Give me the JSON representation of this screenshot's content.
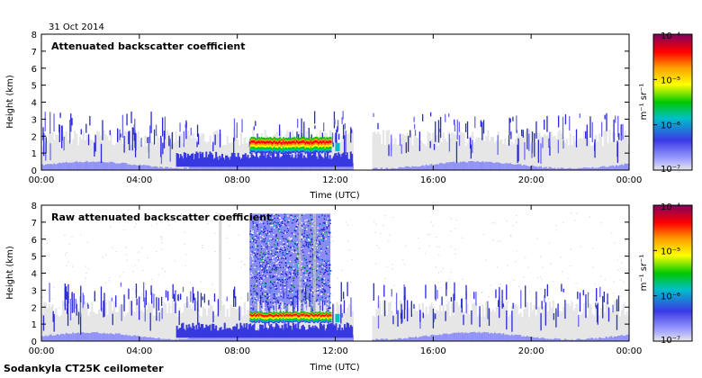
{
  "date": "31 Oct 2014",
  "footer": "Sodankyla CT25K ceilometer",
  "colorbar": {
    "unit_label": "m⁻¹ sr⁻¹",
    "ticks": [
      "10⁻⁴",
      "10⁻⁵",
      "10⁻⁶",
      "10⁻⁷"
    ],
    "log_range": [
      -7,
      -4
    ],
    "colors": [
      "#e8e8e8",
      "#9fa0ff",
      "#3a3ae6",
      "#00bfc8",
      "#00c800",
      "#ffff00",
      "#ffa000",
      "#ff0000",
      "#800060"
    ]
  },
  "chart_data": [
    {
      "type": "heatmap",
      "title": "Attenuated backscatter coefficient",
      "xlabel": "Time (UTC)",
      "ylabel": "Height (km)",
      "x_ticks": [
        "00:00",
        "04:00",
        "08:00",
        "12:00",
        "16:00",
        "20:00",
        "00:00"
      ],
      "y_ticks": [
        "0",
        "1",
        "2",
        "3",
        "4",
        "5",
        "6",
        "7",
        "8"
      ],
      "xlim_hours": [
        0,
        24
      ],
      "ylim_km": [
        0,
        8
      ],
      "data_gap_hours": [
        12.7,
        13.5
      ],
      "cloud_layer": {
        "start_hour": 8.5,
        "end_hour": 11.8,
        "base_km": 1.0,
        "top_km": 1.9
      },
      "noise_fill": null
    },
    {
      "type": "heatmap",
      "title": "Raw attenuated backscatter coefficient",
      "xlabel": "Time (UTC)",
      "ylabel": "Height (km)",
      "x_ticks": [
        "00:00",
        "04:00",
        "08:00",
        "12:00",
        "16:00",
        "20:00",
        "00:00"
      ],
      "y_ticks": [
        "0",
        "1",
        "2",
        "3",
        "4",
        "5",
        "6",
        "7",
        "8"
      ],
      "xlim_hours": [
        0,
        24
      ],
      "ylim_km": [
        0,
        8
      ],
      "data_gap_hours": [
        12.7,
        13.5
      ],
      "cloud_layer": {
        "start_hour": 8.5,
        "end_hour": 11.8,
        "base_km": 1.1,
        "top_km": 1.7
      },
      "noise_fill": {
        "start_hour": 8.5,
        "end_hour": 11.8,
        "top_km": 7.5
      }
    }
  ]
}
